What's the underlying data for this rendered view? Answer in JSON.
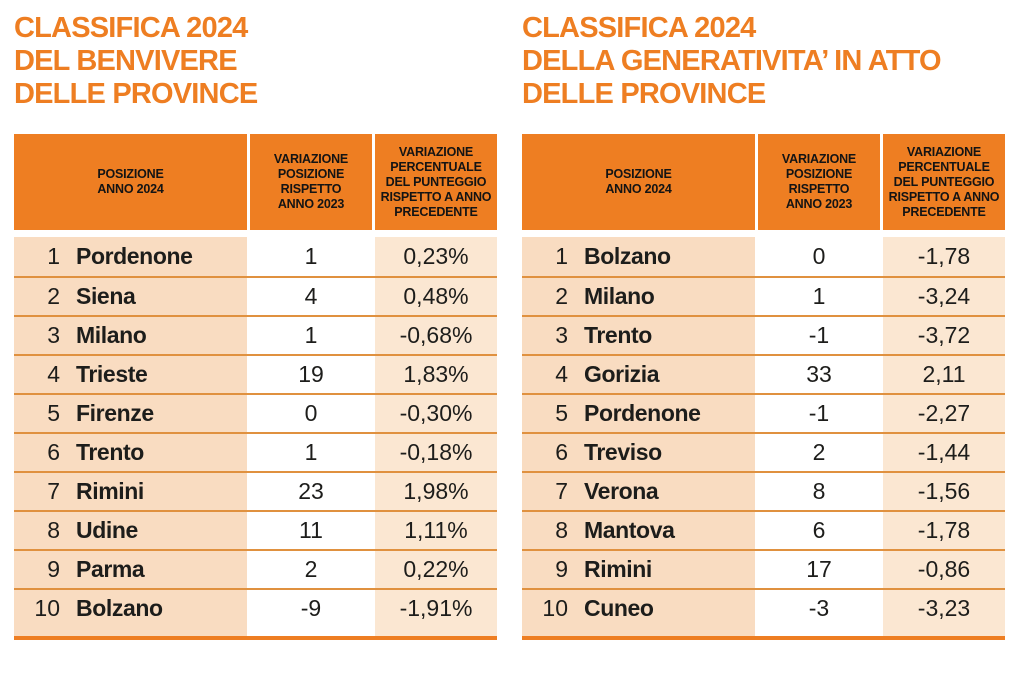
{
  "colors": {
    "accent_orange": "#ee7e22",
    "divider_orange": "#e0913f",
    "row_peach": "#f9dcc1",
    "row_light_peach": "#fbe7d2",
    "text_black": "#1d1d1b"
  },
  "chart_data": [
    {
      "type": "table",
      "title": "CLASSIFICA 2024 DEL BENVIVERE DELLE PROVINCE",
      "title_lines": [
        "CLASSIFICA 2024",
        "DEL BENVIVERE",
        "DELLE PROVINCE"
      ],
      "columns": [
        "POSIZIONE\nANNO 2024",
        "VARIAZIONE\nPOSIZIONE\nRISPETTO\nANNO 2023",
        "VARIAZIONE\nPERCENTUALE\nDEL PUNTEGGIO\nRISPETTO A ANNO\nPRECEDENTE"
      ],
      "rows": [
        {
          "rank": "1",
          "province": "Pordenone",
          "variation": "1",
          "pct": "0,23%"
        },
        {
          "rank": "2",
          "province": "Siena",
          "variation": "4",
          "pct": "0,48%"
        },
        {
          "rank": "3",
          "province": "Milano",
          "variation": "1",
          "pct": "-0,68%"
        },
        {
          "rank": "4",
          "province": "Trieste",
          "variation": "19",
          "pct": "1,83%"
        },
        {
          "rank": "5",
          "province": "Firenze",
          "variation": "0",
          "pct": "-0,30%"
        },
        {
          "rank": "6",
          "province": "Trento",
          "variation": "1",
          "pct": "-0,18%"
        },
        {
          "rank": "7",
          "province": "Rimini",
          "variation": "23",
          "pct": "1,98%"
        },
        {
          "rank": "8",
          "province": "Udine",
          "variation": "11",
          "pct": "1,11%"
        },
        {
          "rank": "9",
          "province": "Parma",
          "variation": "2",
          "pct": "0,22%"
        },
        {
          "rank": "10",
          "province": "Bolzano",
          "variation": "-9",
          "pct": "-1,91%"
        }
      ]
    },
    {
      "type": "table",
      "title": "CLASSIFICA 2024 DELLA GENERATIVITA' IN ATTO DELLE PROVINCE",
      "title_lines": [
        "CLASSIFICA 2024",
        "DELLA GENERATIVITA’ IN ATTO",
        "DELLE PROVINCE"
      ],
      "columns": [
        "POSIZIONE\nANNO 2024",
        "VARIAZIONE\nPOSIZIONE\nRISPETTO\nANNO 2023",
        "VARIAZIONE\nPERCENTUALE\nDEL PUNTEGGIO\nRISPETTO A ANNO\nPRECEDENTE"
      ],
      "rows": [
        {
          "rank": "1",
          "province": "Bolzano",
          "variation": "0",
          "pct": "-1,78"
        },
        {
          "rank": "2",
          "province": "Milano",
          "variation": "1",
          "pct": "-3,24"
        },
        {
          "rank": "3",
          "province": "Trento",
          "variation": "-1",
          "pct": "-3,72"
        },
        {
          "rank": "4",
          "province": "Gorizia",
          "variation": "33",
          "pct": "2,11"
        },
        {
          "rank": "5",
          "province": "Pordenone",
          "variation": "-1",
          "pct": "-2,27"
        },
        {
          "rank": "6",
          "province": "Treviso",
          "variation": "2",
          "pct": "-1,44"
        },
        {
          "rank": "7",
          "province": "Verona",
          "variation": "8",
          "pct": "-1,56"
        },
        {
          "rank": "8",
          "province": "Mantova",
          "variation": "6",
          "pct": "-1,78"
        },
        {
          "rank": "9",
          "province": "Rimini",
          "variation": "17",
          "pct": "-0,86"
        },
        {
          "rank": "10",
          "province": "Cuneo",
          "variation": "-3",
          "pct": "-3,23"
        }
      ]
    }
  ]
}
